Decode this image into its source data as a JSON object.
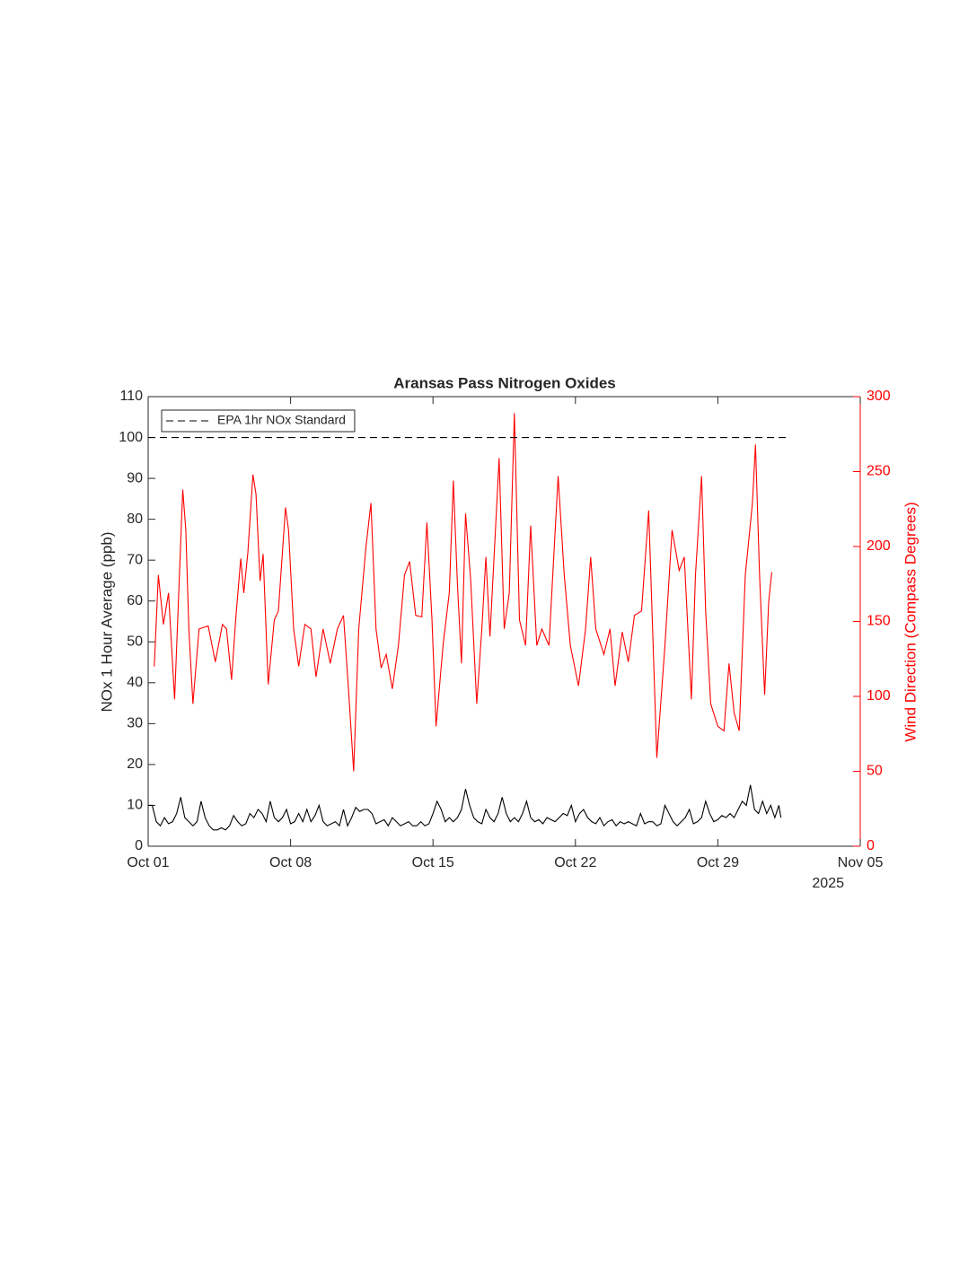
{
  "chart_data": {
    "type": "line",
    "title": "Aransas Pass Nitrogen Oxides",
    "y_label": "NOx 1 Hour Average (ppb)",
    "y2_label": "Wind Direction (Compass Degrees)",
    "x_year_label": "2025",
    "xlim": [
      0,
      35
    ],
    "xticks": [
      {
        "value": 0,
        "label": "Oct 01"
      },
      {
        "value": 7,
        "label": "Oct 08"
      },
      {
        "value": 14,
        "label": "Oct 15"
      },
      {
        "value": 21,
        "label": "Oct 22"
      },
      {
        "value": 28,
        "label": "Oct 29"
      },
      {
        "value": 35,
        "label": "Nov 05"
      }
    ],
    "ylim": [
      0,
      110
    ],
    "yticks": [
      0,
      10,
      20,
      30,
      40,
      50,
      60,
      70,
      80,
      90,
      100,
      110
    ],
    "y2lim": [
      0,
      300
    ],
    "y2ticks": [
      0,
      50,
      100,
      150,
      200,
      250,
      300
    ],
    "legend": "upper left",
    "series": [
      {
        "color": "#000000",
        "x": [
          0,
          0.2,
          0.4,
          0.6,
          0.8,
          1.0,
          1.2,
          1.4,
          1.6,
          1.8,
          2.0,
          2.2,
          2.4,
          2.6,
          2.8,
          3.0,
          3.2,
          3.4,
          3.6,
          3.8,
          4.0,
          4.2,
          4.4,
          4.6,
          4.8,
          5.0,
          5.2,
          5.4,
          5.6,
          5.8,
          6.0,
          6.2,
          6.4,
          6.6,
          6.8,
          7.0,
          7.2,
          7.4,
          7.6,
          7.8,
          8.0,
          8.2,
          8.4,
          8.6,
          8.8,
          9.0,
          9.2,
          9.4,
          9.6,
          9.8,
          10.0,
          10.2,
          10.4,
          10.6,
          10.8,
          11.0,
          11.2,
          11.4,
          11.6,
          11.8,
          12.0,
          12.2,
          12.4,
          12.6,
          12.8,
          13.0,
          13.2,
          13.4,
          13.6,
          13.8,
          14.0,
          14.2,
          14.4,
          14.6,
          14.8,
          15.0,
          15.2,
          15.4,
          15.6,
          15.8,
          16.0,
          16.2,
          16.4,
          16.6,
          16.8,
          17.0,
          17.2,
          17.4,
          17.6,
          17.8,
          18.0,
          18.2,
          18.4,
          18.6,
          18.8,
          19.0,
          19.2,
          19.4,
          19.6,
          19.8,
          20.0,
          20.2,
          20.4,
          20.6,
          20.8,
          21.0,
          21.2,
          21.4,
          21.6,
          21.8,
          22.0,
          22.2,
          22.4,
          22.6,
          22.8,
          23.0,
          23.2,
          23.4,
          23.6,
          23.8,
          24.0,
          24.2,
          24.4,
          24.6,
          24.8,
          25.0,
          25.2,
          25.4,
          25.6,
          25.8,
          26.0,
          26.2,
          26.4,
          26.6,
          26.8,
          27.0,
          27.2,
          27.4,
          27.6,
          27.8,
          28.0,
          28.2,
          28.4,
          28.6,
          28.8,
          29.0,
          29.2,
          29.4,
          29.6,
          29.8,
          30.0,
          30.2,
          30.4,
          30.6,
          30.8,
          31.0,
          31.1
        ],
        "values": [
          10,
          10,
          6,
          5,
          7,
          5.5,
          6,
          8,
          12,
          7,
          6,
          5,
          6,
          11,
          7,
          5,
          4,
          4,
          4.5,
          4,
          5,
          7.5,
          6,
          5,
          5.5,
          8,
          7,
          9,
          8,
          6,
          11,
          7,
          6,
          7,
          9,
          5.5,
          6,
          8,
          6,
          9,
          6,
          7.5,
          10,
          6,
          5,
          5.5,
          6,
          5,
          9,
          5,
          7,
          9.5,
          8.5,
          9,
          9,
          8,
          5.5,
          6,
          6.5,
          5,
          7,
          6,
          5,
          5.5,
          6,
          5,
          5,
          6,
          5,
          5.5,
          8,
          11,
          9,
          6,
          7,
          6,
          7,
          9,
          14,
          10,
          7,
          6,
          5.5,
          9,
          7,
          6,
          8,
          12,
          8,
          6,
          7,
          6,
          8,
          11,
          7,
          6,
          6.5,
          5.5,
          7,
          6.5,
          6,
          7,
          8,
          7.5,
          10,
          6,
          8,
          9,
          7,
          6,
          5.5,
          7,
          5,
          6,
          6.5,
          5,
          6,
          5.5,
          6,
          5.5,
          5,
          8,
          5.5,
          6,
          6,
          5,
          5.5,
          10,
          8,
          6,
          5,
          6,
          7,
          9,
          5.5,
          6,
          7,
          11,
          8,
          6,
          6.5,
          7.5,
          7,
          8,
          7,
          9,
          11,
          10,
          15,
          9,
          8,
          11,
          8,
          10,
          7,
          10,
          7
        ]
      },
      {
        "color": "#ff0000",
        "axis": "y2",
        "x": [
          0.3,
          0.5,
          0.75,
          1.0,
          1.3,
          1.7,
          1.85,
          2.0,
          2.2,
          2.5,
          2.95,
          3.3,
          3.65,
          3.85,
          4.1,
          4.3,
          4.55,
          4.7,
          4.9,
          5.15,
          5.3,
          5.5,
          5.65,
          5.9,
          6.2,
          6.4,
          6.75,
          6.9,
          7.15,
          7.4,
          7.7,
          8.0,
          8.25,
          8.6,
          8.95,
          9.3,
          9.6,
          9.85,
          10.1,
          10.35,
          10.7,
          10.95,
          11.2,
          11.45,
          11.7,
          12.0,
          12.3,
          12.6,
          12.85,
          13.15,
          13.45,
          13.7,
          13.95,
          14.15,
          14.5,
          14.8,
          15.0,
          15.2,
          15.4,
          15.6,
          15.85,
          16.15,
          16.4,
          16.6,
          16.8,
          17.25,
          17.5,
          17.75,
          18.0,
          18.25,
          18.55,
          18.8,
          19.1,
          19.35,
          19.7,
          20.15,
          20.45,
          20.75,
          21.15,
          21.5,
          21.75,
          22.0,
          22.4,
          22.7,
          22.95,
          23.3,
          23.6,
          23.9,
          24.25,
          24.6,
          24.75,
          25.0,
          25.4,
          25.75,
          26.1,
          26.35,
          26.7,
          26.9,
          27.2,
          27.4,
          27.65,
          28.0,
          28.3,
          28.55,
          28.8,
          29.05,
          29.35,
          29.7,
          29.85,
          30.05,
          30.3,
          30.5,
          30.65
        ],
        "values": [
          120,
          181,
          148,
          169,
          98,
          238,
          211,
          145,
          95,
          145,
          147,
          123,
          148,
          145,
          111,
          151,
          192,
          169,
          196,
          248,
          235,
          177,
          195,
          108,
          151,
          157,
          226,
          211,
          145,
          120,
          148,
          145,
          113,
          145,
          122,
          145,
          154,
          104,
          50,
          145,
          199,
          229,
          145,
          119,
          128,
          105,
          134,
          181,
          190,
          154,
          153,
          216,
          151,
          80,
          135,
          169,
          244,
          175,
          122,
          222,
          178,
          95,
          145,
          193,
          140,
          259,
          145,
          169,
          289,
          151,
          134,
          214,
          134,
          145,
          134,
          247,
          181,
          134,
          107,
          145,
          193,
          145,
          128,
          145,
          107,
          143,
          123,
          154,
          157,
          224,
          163,
          59,
          134,
          211,
          184,
          193,
          98,
          181,
          247,
          157,
          95,
          80,
          77,
          122,
          89,
          77,
          181,
          229,
          268,
          181,
          101,
          163,
          183
        ]
      },
      {
        "name": "EPA 1hr NOx Standard",
        "color": "#000000",
        "dashed": true,
        "x": [
          0,
          31.55
        ],
        "values": [
          100,
          100
        ]
      }
    ]
  }
}
